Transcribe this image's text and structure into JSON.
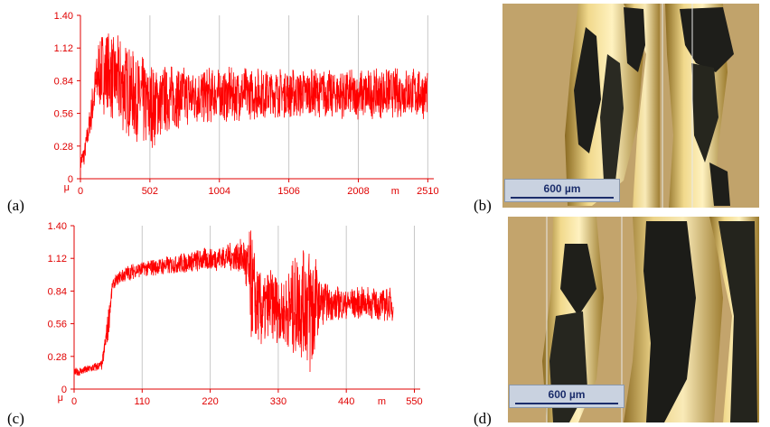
{
  "panels": {
    "a": "(a)",
    "b": "(b)",
    "c": "(c)",
    "d": "(d)"
  },
  "chart_data": [
    {
      "type": "line",
      "panel": "(a)",
      "title": "",
      "ylabel": "μ",
      "xlabel": "m",
      "xlim": [
        0,
        2510
      ],
      "ylim": [
        0,
        1.4
      ],
      "xticks": [
        "0",
        "502",
        "1004",
        "1506",
        "2008",
        "2510"
      ],
      "yticks": [
        "0",
        "0.28",
        "0.56",
        "0.84",
        "1.12",
        "1.40"
      ],
      "color": "#ff0000",
      "envelope": {
        "x": [
          0,
          30,
          60,
          100,
          130,
          170,
          210,
          260,
          320,
          400,
          502,
          600,
          800,
          1004,
          1200,
          1506,
          1800,
          2008,
          2200,
          2400,
          2510
        ],
        "upper": [
          0.22,
          0.32,
          0.55,
          0.95,
          1.22,
          1.3,
          1.26,
          1.24,
          1.2,
          1.08,
          1.02,
          0.99,
          0.96,
          0.96,
          0.96,
          0.95,
          0.94,
          0.94,
          0.95,
          0.96,
          0.96
        ],
        "lower": [
          0.05,
          0.12,
          0.3,
          0.52,
          0.6,
          0.55,
          0.52,
          0.45,
          0.38,
          0.32,
          0.22,
          0.38,
          0.46,
          0.48,
          0.5,
          0.52,
          0.52,
          0.5,
          0.52,
          0.52,
          0.5
        ]
      }
    },
    {
      "type": "line",
      "panel": "(c)",
      "title": "",
      "ylabel": "μ",
      "xlabel": "m",
      "xlim": [
        0,
        550
      ],
      "ylim": [
        0,
        1.4
      ],
      "xticks": [
        "0",
        "110",
        "220",
        "330",
        "440",
        "550"
      ],
      "yticks": [
        "0",
        "0.28",
        "0.56",
        "0.84",
        "1.12",
        "1.40"
      ],
      "color": "#ff0000",
      "envelope": {
        "x": [
          0,
          20,
          45,
          55,
          62,
          75,
          90,
          110,
          150,
          200,
          250,
          275,
          285,
          300,
          320,
          340,
          360,
          375,
          385,
          395,
          410,
          440,
          470,
          500,
          515
        ],
        "upper": [
          0.18,
          0.2,
          0.25,
          0.7,
          0.94,
          1.03,
          1.07,
          1.1,
          1.14,
          1.2,
          1.25,
          1.3,
          1.38,
          1.0,
          1.05,
          0.95,
          1.18,
          1.3,
          1.4,
          0.98,
          0.9,
          0.87,
          0.88,
          0.86,
          0.88
        ],
        "lower": [
          0.1,
          0.13,
          0.16,
          0.4,
          0.84,
          0.9,
          0.93,
          0.96,
          0.98,
          1.0,
          1.02,
          0.95,
          0.4,
          0.32,
          0.42,
          0.35,
          0.25,
          0.18,
          0.0,
          0.52,
          0.58,
          0.6,
          0.6,
          0.58,
          0.58
        ]
      }
    }
  ],
  "micrographs": {
    "b": {
      "scale_label": "600 µm"
    },
    "d": {
      "scale_label": "600 µm"
    }
  }
}
